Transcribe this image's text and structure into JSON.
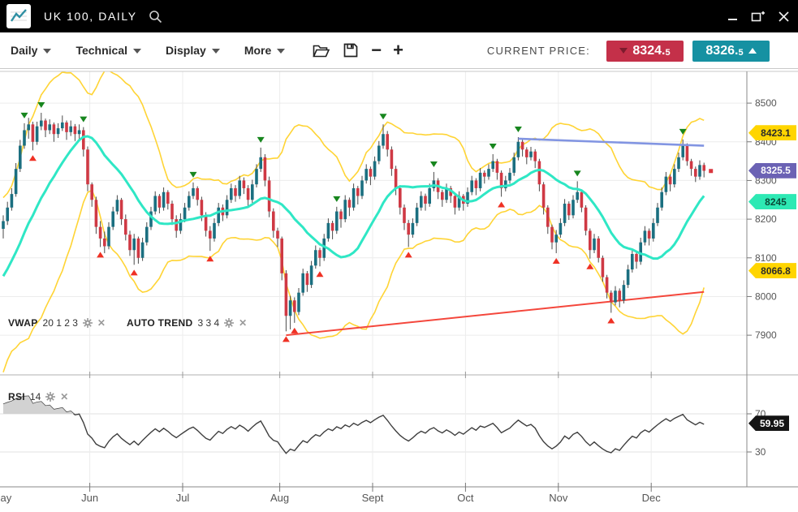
{
  "window": {
    "title": "UK 100, DAILY",
    "controls": {
      "minimize": "minimize",
      "popout": "pop-out",
      "close": "close"
    }
  },
  "toolbar": {
    "menus": [
      {
        "label": "Daily"
      },
      {
        "label": "Technical"
      },
      {
        "label": "Display"
      },
      {
        "label": "More"
      }
    ],
    "current_price_label": "CURRENT PRICE:",
    "bid": {
      "main": "8324.",
      "fraction": "5",
      "color": "#c43049"
    },
    "ask": {
      "main": "8326.",
      "fraction": "5",
      "color": "#1691a2"
    }
  },
  "indicators": {
    "vwap": {
      "name": "VWAP",
      "params": "20 1 2 3"
    },
    "autotrend": {
      "name": "AUTO TREND",
      "params": "3 3 4"
    },
    "rsi": {
      "name": "RSI",
      "params": "14"
    }
  },
  "chart_data": {
    "type": "candlestick",
    "symbol": "UK 100",
    "timeframe": "DAILY",
    "y_axis": {
      "ticks": [
        8500,
        8400,
        8300,
        8200,
        8100,
        8000,
        7900
      ]
    },
    "x_axis": {
      "months": [
        {
          "label": "May",
          "i": 0
        },
        {
          "label": "Jun",
          "i": 21
        },
        {
          "label": "Jul",
          "i": 43
        },
        {
          "label": "Aug",
          "i": 66
        },
        {
          "label": "Sept",
          "i": 88
        },
        {
          "label": "Oct",
          "i": 110
        },
        {
          "label": "Nov",
          "i": 132
        },
        {
          "label": "Dec",
          "i": 154
        }
      ]
    },
    "warmup": 20,
    "candles": [
      [
        7840,
        7855,
        7810,
        7820
      ],
      [
        7820,
        7835,
        7790,
        7800
      ],
      [
        7800,
        7860,
        7795,
        7850
      ],
      [
        7850,
        7910,
        7845,
        7900
      ],
      [
        7900,
        7915,
        7870,
        7880
      ],
      [
        7880,
        7940,
        7875,
        7930
      ],
      [
        7930,
        7980,
        7925,
        7970
      ],
      [
        7970,
        7985,
        7940,
        7950
      ],
      [
        7950,
        8010,
        7945,
        8000
      ],
      [
        8000,
        8050,
        7995,
        8040
      ],
      [
        8040,
        8055,
        8010,
        8020
      ],
      [
        8020,
        8070,
        8015,
        8060
      ],
      [
        8060,
        8110,
        8055,
        8100
      ],
      [
        8100,
        8115,
        8070,
        8080
      ],
      [
        8080,
        8130,
        8075,
        8120
      ],
      [
        8120,
        8135,
        8090,
        8100
      ],
      [
        8100,
        8150,
        8095,
        8140
      ],
      [
        8140,
        8155,
        8120,
        8130
      ],
      [
        8130,
        8170,
        8125,
        8160
      ],
      [
        8160,
        8185,
        8155,
        8175
      ],
      [
        8175,
        8210,
        8150,
        8195
      ],
      [
        8195,
        8245,
        8185,
        8230
      ],
      [
        8230,
        8280,
        8222,
        8265
      ],
      [
        8265,
        8345,
        8258,
        8330
      ],
      [
        8330,
        8405,
        8322,
        8390
      ],
      [
        8390,
        8448,
        8382,
        8430
      ],
      [
        8430,
        8462,
        8408,
        8445
      ],
      [
        8445,
        8452,
        8378,
        8400
      ],
      [
        8400,
        8452,
        8392,
        8440
      ],
      [
        8440,
        8475,
        8430,
        8455
      ],
      [
        8455,
        8460,
        8412,
        8430
      ],
      [
        8430,
        8458,
        8420,
        8445
      ],
      [
        8445,
        8450,
        8400,
        8420
      ],
      [
        8420,
        8448,
        8410,
        8435
      ],
      [
        8435,
        8468,
        8428,
        8450
      ],
      [
        8450,
        8455,
        8405,
        8425
      ],
      [
        8425,
        8455,
        8415,
        8440
      ],
      [
        8440,
        8446,
        8402,
        8420
      ],
      [
        8420,
        8445,
        8408,
        8430
      ],
      [
        8430,
        8438,
        8362,
        8380
      ],
      [
        8380,
        8388,
        8272,
        8290
      ],
      [
        8290,
        8295,
        8232,
        8250
      ],
      [
        8250,
        8258,
        8162,
        8180
      ],
      [
        8180,
        8195,
        8128,
        8150
      ],
      [
        8150,
        8168,
        8112,
        8130
      ],
      [
        8130,
        8192,
        8122,
        8180
      ],
      [
        8180,
        8232,
        8172,
        8220
      ],
      [
        8220,
        8262,
        8212,
        8250
      ],
      [
        8250,
        8255,
        8185,
        8200
      ],
      [
        8200,
        8212,
        8145,
        8160
      ],
      [
        8160,
        8170,
        8105,
        8120
      ],
      [
        8120,
        8162,
        8082,
        8150
      ],
      [
        8150,
        8155,
        8085,
        8100
      ],
      [
        8100,
        8152,
        8092,
        8140
      ],
      [
        8140,
        8192,
        8132,
        8180
      ],
      [
        8180,
        8232,
        8172,
        8220
      ],
      [
        8220,
        8272,
        8212,
        8260
      ],
      [
        8260,
        8265,
        8215,
        8230
      ],
      [
        8230,
        8282,
        8222,
        8270
      ],
      [
        8270,
        8275,
        8225,
        8240
      ],
      [
        8240,
        8248,
        8185,
        8200
      ],
      [
        8200,
        8210,
        8152,
        8170
      ],
      [
        8170,
        8215,
        8162,
        8200
      ],
      [
        8200,
        8242,
        8192,
        8230
      ],
      [
        8230,
        8272,
        8222,
        8260
      ],
      [
        8260,
        8295,
        8252,
        8280
      ],
      [
        8280,
        8285,
        8235,
        8250
      ],
      [
        8250,
        8258,
        8195,
        8210
      ],
      [
        8210,
        8218,
        8155,
        8170
      ],
      [
        8170,
        8182,
        8118,
        8150
      ],
      [
        8150,
        8202,
        8142,
        8190
      ],
      [
        8190,
        8242,
        8182,
        8230
      ],
      [
        8230,
        8238,
        8195,
        8210
      ],
      [
        8210,
        8262,
        8202,
        8250
      ],
      [
        8250,
        8292,
        8242,
        8280
      ],
      [
        8280,
        8288,
        8245,
        8260
      ],
      [
        8260,
        8312,
        8252,
        8300
      ],
      [
        8300,
        8308,
        8265,
        8280
      ],
      [
        8280,
        8288,
        8232,
        8250
      ],
      [
        8250,
        8302,
        8242,
        8290
      ],
      [
        8290,
        8342,
        8282,
        8330
      ],
      [
        8330,
        8385,
        8322,
        8360
      ],
      [
        8360,
        8368,
        8285,
        8300
      ],
      [
        8300,
        8310,
        8205,
        8220
      ],
      [
        8220,
        8228,
        8152,
        8170
      ],
      [
        8170,
        8178,
        8128,
        8150
      ],
      [
        8150,
        8155,
        8042,
        8060
      ],
      [
        8060,
        8068,
        7910,
        7950
      ],
      [
        7950,
        8002,
        7915,
        7990
      ],
      [
        7990,
        7998,
        7932,
        7960
      ],
      [
        7960,
        8022,
        7952,
        8010
      ],
      [
        8010,
        8072,
        8002,
        8060
      ],
      [
        8060,
        8066,
        8012,
        8030
      ],
      [
        8030,
        8092,
        8022,
        8080
      ],
      [
        8080,
        8132,
        8072,
        8120
      ],
      [
        8120,
        8126,
        8078,
        8100
      ],
      [
        8100,
        8162,
        8092,
        8150
      ],
      [
        8150,
        8202,
        8142,
        8190
      ],
      [
        8190,
        8196,
        8148,
        8170
      ],
      [
        8170,
        8232,
        8162,
        8220
      ],
      [
        8220,
        8226,
        8178,
        8200
      ],
      [
        8200,
        8262,
        8192,
        8250
      ],
      [
        8250,
        8256,
        8208,
        8230
      ],
      [
        8230,
        8292,
        8222,
        8280
      ],
      [
        8280,
        8286,
        8238,
        8260
      ],
      [
        8260,
        8312,
        8252,
        8300
      ],
      [
        8300,
        8342,
        8292,
        8330
      ],
      [
        8330,
        8336,
        8288,
        8310
      ],
      [
        8310,
        8362,
        8302,
        8350
      ],
      [
        8350,
        8402,
        8342,
        8390
      ],
      [
        8390,
        8445,
        8382,
        8420
      ],
      [
        8420,
        8428,
        8362,
        8380
      ],
      [
        8380,
        8388,
        8312,
        8330
      ],
      [
        8330,
        8338,
        8262,
        8280
      ],
      [
        8280,
        8288,
        8212,
        8230
      ],
      [
        8230,
        8238,
        8172,
        8190
      ],
      [
        8190,
        8198,
        8128,
        8160
      ],
      [
        8160,
        8202,
        8152,
        8190
      ],
      [
        8190,
        8242,
        8182,
        8230
      ],
      [
        8230,
        8272,
        8222,
        8260
      ],
      [
        8260,
        8266,
        8222,
        8240
      ],
      [
        8240,
        8292,
        8232,
        8280
      ],
      [
        8280,
        8322,
        8272,
        8300
      ],
      [
        8300,
        8306,
        8252,
        8270
      ],
      [
        8270,
        8276,
        8232,
        8250
      ],
      [
        8250,
        8292,
        8242,
        8280
      ],
      [
        8280,
        8286,
        8242,
        8260
      ],
      [
        8260,
        8266,
        8212,
        8230
      ],
      [
        8230,
        8272,
        8222,
        8260
      ],
      [
        8260,
        8265,
        8222,
        8240
      ],
      [
        8240,
        8282,
        8232,
        8270
      ],
      [
        8270,
        8312,
        8262,
        8300
      ],
      [
        8300,
        8306,
        8262,
        8280
      ],
      [
        8280,
        8332,
        8272,
        8320
      ],
      [
        8320,
        8326,
        8292,
        8310
      ],
      [
        8310,
        8342,
        8302,
        8330
      ],
      [
        8330,
        8368,
        8322,
        8350
      ],
      [
        8350,
        8356,
        8302,
        8320
      ],
      [
        8320,
        8326,
        8258,
        8280
      ],
      [
        8280,
        8312,
        8272,
        8300
      ],
      [
        8300,
        8332,
        8292,
        8320
      ],
      [
        8320,
        8372,
        8312,
        8360
      ],
      [
        8360,
        8412,
        8352,
        8400
      ],
      [
        8400,
        8406,
        8362,
        8380
      ],
      [
        8380,
        8386,
        8342,
        8360
      ],
      [
        8360,
        8387,
        8352,
        8375
      ],
      [
        8375,
        8381,
        8332,
        8350
      ],
      [
        8350,
        8356,
        8272,
        8290
      ],
      [
        8290,
        8296,
        8212,
        8230
      ],
      [
        8230,
        8236,
        8162,
        8180
      ],
      [
        8180,
        8186,
        8122,
        8140
      ],
      [
        8140,
        8172,
        8112,
        8160
      ],
      [
        8160,
        8202,
        8152,
        8190
      ],
      [
        8190,
        8252,
        8182,
        8240
      ],
      [
        8240,
        8246,
        8198,
        8210
      ],
      [
        8210,
        8262,
        8202,
        8250
      ],
      [
        8250,
        8298,
        8242,
        8270
      ],
      [
        8270,
        8276,
        8218,
        8230
      ],
      [
        8230,
        8236,
        8158,
        8170
      ],
      [
        8170,
        8176,
        8098,
        8120
      ],
      [
        8120,
        8162,
        8112,
        8150
      ],
      [
        8150,
        8156,
        8088,
        8100
      ],
      [
        8100,
        8106,
        8038,
        8050
      ],
      [
        8050,
        8056,
        7995,
        8010
      ],
      [
        8010,
        8016,
        7958,
        7985
      ],
      [
        7985,
        8027,
        7977,
        8015
      ],
      [
        8015,
        8021,
        7972,
        7990
      ],
      [
        7990,
        8042,
        7982,
        8030
      ],
      [
        8030,
        8082,
        8022,
        8070
      ],
      [
        8070,
        8122,
        8062,
        8110
      ],
      [
        8110,
        8116,
        8072,
        8090
      ],
      [
        8090,
        8152,
        8082,
        8140
      ],
      [
        8140,
        8182,
        8132,
        8170
      ],
      [
        8170,
        8176,
        8132,
        8150
      ],
      [
        8150,
        8202,
        8142,
        8190
      ],
      [
        8190,
        8242,
        8182,
        8230
      ],
      [
        8230,
        8282,
        8222,
        8270
      ],
      [
        8270,
        8322,
        8262,
        8310
      ],
      [
        8310,
        8316,
        8272,
        8290
      ],
      [
        8290,
        8342,
        8282,
        8330
      ],
      [
        8330,
        8372,
        8322,
        8360
      ],
      [
        8360,
        8406,
        8352,
        8390
      ],
      [
        8390,
        8396,
        8338,
        8350
      ],
      [
        8350,
        8356,
        8312,
        8330
      ],
      [
        8330,
        8336,
        8296,
        8310
      ],
      [
        8310,
        8352,
        8302,
        8340
      ],
      [
        8340,
        8346,
        8308,
        8325
      ]
    ],
    "overlays": {
      "bollinger": {
        "window": 20,
        "mult": 2,
        "color": "#ffd435"
      },
      "vwap": {
        "window": 18,
        "color": "#2fe7c5"
      },
      "trendlines": [
        {
          "from": [
            122,
            8408
          ],
          "to": [
            166,
            8390
          ],
          "color": "#8295e2",
          "width": 2.6
        },
        {
          "from": [
            67,
            7900
          ],
          "to": [
            166,
            8012
          ],
          "color": "#f4473c",
          "width": 2
        }
      ]
    },
    "signals": {
      "sell": [
        5,
        9,
        19,
        45,
        61,
        79,
        90,
        102,
        116,
        122,
        136,
        161
      ],
      "buy": [
        7,
        23,
        31,
        49,
        67,
        69,
        75,
        96,
        118,
        131,
        139,
        144
      ],
      "sell_color": "#17861e",
      "buy_color": "#ef3124"
    },
    "rsi": {
      "window": 14,
      "levels": [
        70,
        30
      ],
      "line_color": "#3f3f3f",
      "fill_color": "#d2d2d2"
    },
    "price_tags": [
      {
        "value": "8423.1",
        "price": 8423.1,
        "bg": "#ffd500",
        "fg": "#2a2a2a"
      },
      {
        "value": "8325.5",
        "price": 8325.5,
        "bg": "#6b62b4",
        "fg": "#ffffff"
      },
      {
        "value": "8245",
        "price": 8245.0,
        "bg": "#2de9b4",
        "fg": "#0a4a38"
      },
      {
        "value": "8066.8",
        "price": 8066.8,
        "bg": "#ffd500",
        "fg": "#2a2a2a"
      }
    ],
    "rsi_tag": {
      "value": "59.95",
      "rsi": 59.95,
      "bg": "#141414",
      "fg": "#ffffff"
    },
    "last_price_marker": {
      "price": 8324.5,
      "color": "#d9363e"
    },
    "colors": {
      "up": "#1b6f80",
      "down": "#cf3944",
      "wick": "#4a4a4a",
      "grid": "#ececec",
      "axis": "#8a8a8a",
      "panel_border": "#c9c9c9",
      "divider": "#b0b0b0",
      "tick_text": "#555555"
    }
  }
}
